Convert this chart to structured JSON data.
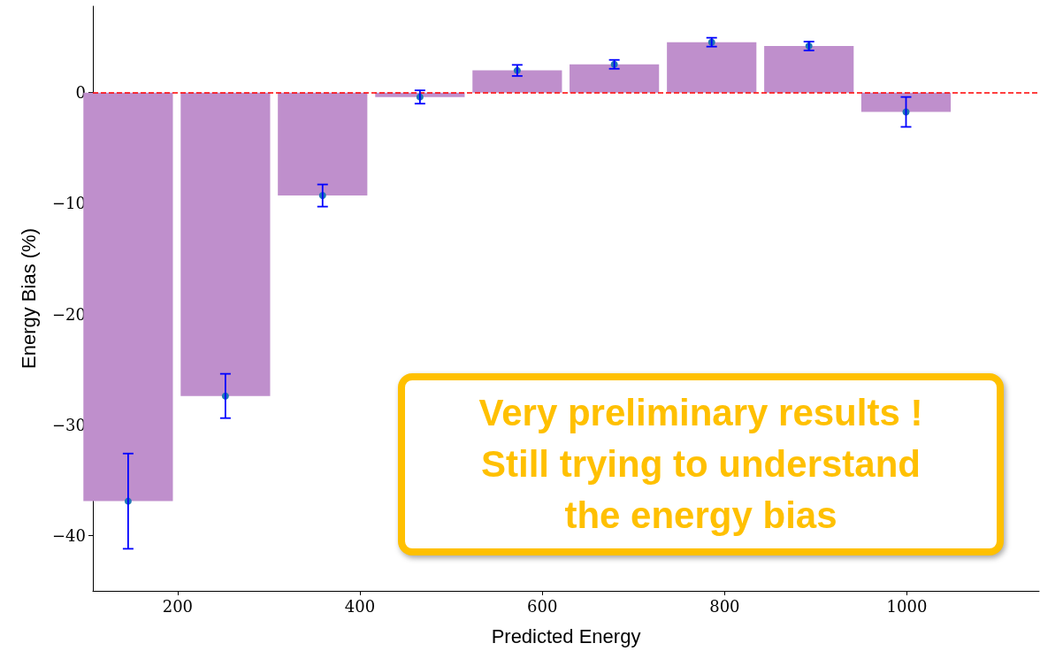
{
  "chart_data": {
    "type": "bar",
    "xlabel": "Predicted Energy",
    "ylabel": "Energy Bias (%)",
    "x": [
      145.7,
      252.4,
      359,
      465.8,
      572.5,
      679,
      785.8,
      892.5,
      999
    ],
    "series": [
      {
        "color": "#bf8fcc",
        "values": [
          -36.9,
          -27.4,
          -9.3,
          -0.4,
          2.0,
          2.55,
          4.55,
          4.2,
          -1.75
        ]
      },
      {
        "type": "scatter",
        "color": "#1f77b4",
        "values": [
          -36.9,
          -27.4,
          -9.3,
          -0.4,
          2.0,
          2.55,
          4.55,
          4.2,
          -1.75
        ],
        "errors": [
          4.3,
          2.0,
          1.0,
          0.6,
          0.5,
          0.4,
          0.4,
          0.4,
          1.35
        ]
      }
    ],
    "xlim": [
      107,
      1145
    ],
    "ylim": [
      -45,
      7.8
    ],
    "xticks": [
      200,
      400,
      600,
      800,
      1000
    ],
    "yticks": [
      {
        "value": -40,
        "label": "−40"
      },
      {
        "value": -30,
        "label": "−30"
      },
      {
        "value": -20,
        "label": "−20"
      },
      {
        "value": -10,
        "label": "−10"
      },
      0
    ],
    "ref_lines": [
      {
        "axis": "y",
        "value": 0,
        "color": "#ff0000",
        "line_style": "dashed"
      }
    ],
    "marker": "circle",
    "grid": false,
    "annotations": [
      "Very preliminary results !\nStill trying to understand\nthe energy bias"
    ]
  }
}
